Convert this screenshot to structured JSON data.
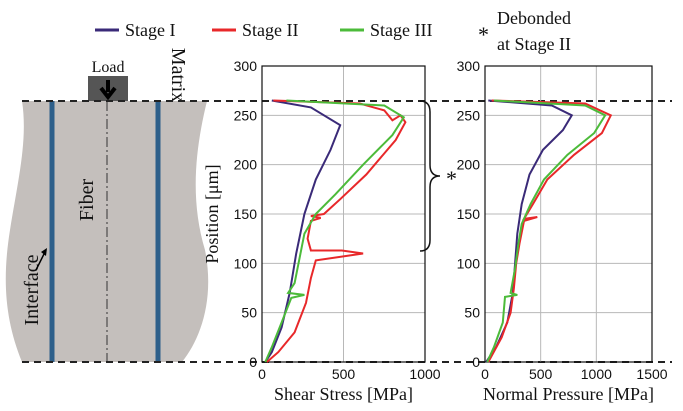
{
  "chart_data": [
    {
      "type": "line",
      "xlabel": "Shear Stress [MPa]",
      "ylabel": "Position [μm]",
      "annotation_marker": "*",
      "annotation": [
        "Debonded",
        "at Stage II"
      ],
      "xlim": [
        0,
        1000
      ],
      "xticks": [
        0,
        500,
        1000
      ],
      "ylim": [
        0,
        300
      ],
      "yticks": [
        0,
        50,
        100,
        150,
        200,
        250,
        300
      ],
      "grid": true,
      "series": [
        {
          "name": "Stage I",
          "color": "#3a2a78",
          "x": [
            60,
            300,
            480,
            420,
            330,
            260,
            210,
            170,
            120,
            60,
            20
          ],
          "values": [
            265,
            258,
            240,
            215,
            185,
            150,
            110,
            70,
            35,
            10,
            0
          ]
        },
        {
          "name": "Stage II",
          "color": "#e8282a",
          "x": [
            70,
            600,
            750,
            800,
            850,
            880,
            820,
            640,
            480,
            380,
            300,
            360,
            300,
            280,
            300,
            490,
            620,
            330,
            300,
            270,
            200,
            100,
            30
          ],
          "values": [
            265,
            262,
            255,
            245,
            250,
            243,
            225,
            190,
            165,
            150,
            148,
            146,
            143,
            125,
            113,
            113,
            110,
            103,
            85,
            60,
            30,
            10,
            0
          ]
        },
        {
          "name": "Stage III",
          "color": "#4cbb3a",
          "x": [
            150,
            750,
            870,
            800,
            620,
            450,
            330,
            260,
            230,
            200,
            160,
            260,
            180,
            120,
            60,
            20
          ],
          "values": [
            265,
            260,
            248,
            230,
            200,
            170,
            150,
            130,
            105,
            80,
            70,
            68,
            65,
            40,
            15,
            0
          ]
        }
      ]
    },
    {
      "type": "line",
      "xlabel": "Normal Pressure [MPa]",
      "xlim": [
        0,
        1500
      ],
      "xticks": [
        0,
        500,
        1000,
        1500
      ],
      "ylim": [
        0,
        300
      ],
      "yticks": [
        0,
        50,
        100,
        150,
        200,
        250,
        300
      ],
      "grid": true,
      "series": [
        {
          "color": "#3a2a78",
          "x": [
            30,
            600,
            780,
            700,
            520,
            400,
            330,
            290,
            270,
            250,
            200,
            100,
            10
          ],
          "values": [
            265,
            260,
            250,
            235,
            215,
            190,
            160,
            130,
            100,
            70,
            40,
            15,
            0
          ]
        },
        {
          "color": "#e8282a",
          "x": [
            60,
            900,
            1130,
            1050,
            800,
            560,
            430,
            350,
            470,
            350,
            310,
            280,
            260,
            230,
            150,
            30
          ],
          "values": [
            265,
            262,
            250,
            232,
            210,
            185,
            160,
            145,
            147,
            143,
            120,
            100,
            75,
            50,
            25,
            0
          ]
        },
        {
          "color": "#4cbb3a",
          "x": [
            80,
            900,
            1080,
            980,
            740,
            530,
            410,
            330,
            300,
            270,
            230,
            290,
            180,
            160,
            80,
            20
          ],
          "values": [
            265,
            260,
            250,
            232,
            210,
            185,
            160,
            140,
            120,
            95,
            70,
            68,
            66,
            40,
            15,
            0
          ]
        }
      ]
    }
  ],
  "diagram": {
    "load": "Load",
    "fiber": "Fiber",
    "matrix": "Matrix",
    "interface": "Interface"
  }
}
